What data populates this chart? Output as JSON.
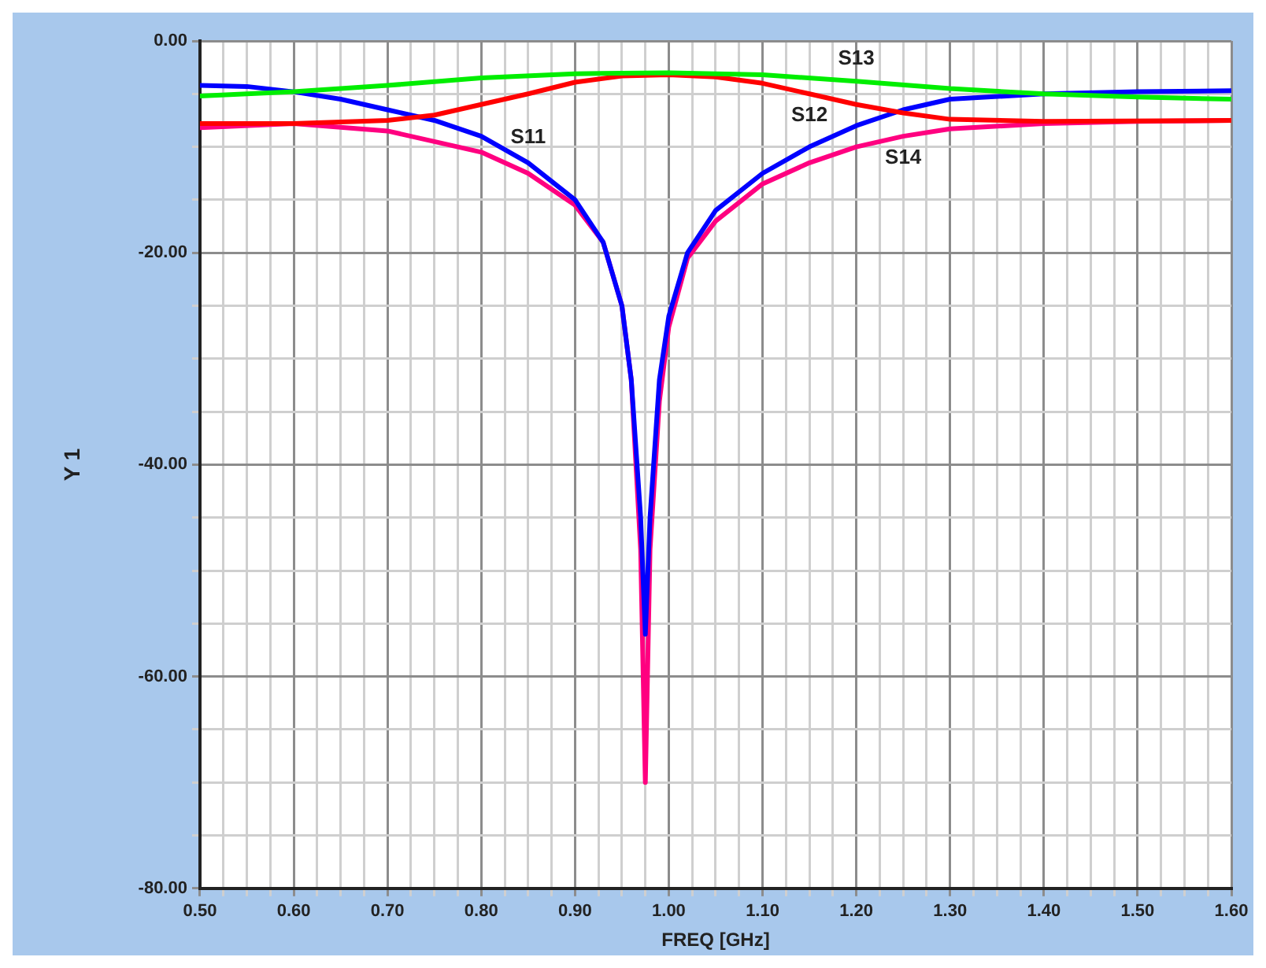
{
  "chart_data": {
    "type": "line",
    "xlabel": "FREQ [GHz]",
    "ylabel": "Y 1",
    "xlim": [
      0.5,
      1.6
    ],
    "ylim": [
      -80,
      0
    ],
    "xticks": [
      {
        "value": 0.5,
        "label": "0.50"
      },
      {
        "value": 0.525,
        "label": null
      },
      {
        "value": 0.55,
        "label": null
      },
      {
        "value": 0.575,
        "label": null
      },
      {
        "value": 0.6,
        "label": "0.60"
      },
      {
        "value": 0.625,
        "label": null
      },
      {
        "value": 0.65,
        "label": null
      },
      {
        "value": 0.675,
        "label": null
      },
      {
        "value": 0.7,
        "label": "0.70"
      },
      {
        "value": 0.725,
        "label": null
      },
      {
        "value": 0.75,
        "label": null
      },
      {
        "value": 0.775,
        "label": null
      },
      {
        "value": 0.8,
        "label": "0.80"
      },
      {
        "value": 0.825,
        "label": null
      },
      {
        "value": 0.85,
        "label": null
      },
      {
        "value": 0.875,
        "label": null
      },
      {
        "value": 0.9,
        "label": "0.90"
      },
      {
        "value": 0.925,
        "label": null
      },
      {
        "value": 0.95,
        "label": null
      },
      {
        "value": 0.975,
        "label": null
      },
      {
        "value": 1.0,
        "label": "1.00"
      },
      {
        "value": 1.025,
        "label": null
      },
      {
        "value": 1.05,
        "label": null
      },
      {
        "value": 1.075,
        "label": null
      },
      {
        "value": 1.1,
        "label": "1.10"
      },
      {
        "value": 1.125,
        "label": null
      },
      {
        "value": 1.15,
        "label": null
      },
      {
        "value": 1.175,
        "label": null
      },
      {
        "value": 1.2,
        "label": "1.20"
      },
      {
        "value": 1.225,
        "label": null
      },
      {
        "value": 1.25,
        "label": null
      },
      {
        "value": 1.275,
        "label": null
      },
      {
        "value": 1.3,
        "label": "1.30"
      },
      {
        "value": 1.325,
        "label": null
      },
      {
        "value": 1.35,
        "label": null
      },
      {
        "value": 1.375,
        "label": null
      },
      {
        "value": 1.4,
        "label": "1.40"
      },
      {
        "value": 1.425,
        "label": null
      },
      {
        "value": 1.45,
        "label": null
      },
      {
        "value": 1.475,
        "label": null
      },
      {
        "value": 1.5,
        "label": "1.50"
      },
      {
        "value": 1.525,
        "label": null
      },
      {
        "value": 1.55,
        "label": null
      },
      {
        "value": 1.575,
        "label": null
      },
      {
        "value": 1.6,
        "label": "1.60"
      }
    ],
    "yticks": [
      {
        "value": 0,
        "label": "0.00"
      },
      {
        "value": -5,
        "label": null
      },
      {
        "value": -10,
        "label": null
      },
      {
        "value": -15,
        "label": null
      },
      {
        "value": -20,
        "label": "-20.00"
      },
      {
        "value": -25,
        "label": null
      },
      {
        "value": -30,
        "label": null
      },
      {
        "value": -35,
        "label": null
      },
      {
        "value": -40,
        "label": "-40.00"
      },
      {
        "value": -45,
        "label": null
      },
      {
        "value": -50,
        "label": null
      },
      {
        "value": -55,
        "label": null
      },
      {
        "value": -60,
        "label": "-60.00"
      },
      {
        "value": -65,
        "label": null
      },
      {
        "value": -70,
        "label": null
      },
      {
        "value": -75,
        "label": null
      },
      {
        "value": -80,
        "label": "-80.00"
      }
    ],
    "grid": true,
    "legend": false,
    "marker": "none",
    "line_style": "solid",
    "series": [
      {
        "name": "S13",
        "color": "#00ee00",
        "x": [
          0.5,
          0.6,
          0.7,
          0.8,
          0.9,
          1.0,
          1.1,
          1.2,
          1.3,
          1.4,
          1.5,
          1.6
        ],
        "values": [
          -5.2,
          -4.8,
          -4.2,
          -3.5,
          -3.1,
          -3.0,
          -3.2,
          -3.8,
          -4.5,
          -5,
          -5.3,
          -5.5
        ]
      },
      {
        "name": "S12",
        "color": "#ff0000",
        "x": [
          0.5,
          0.6,
          0.7,
          0.75,
          0.8,
          0.85,
          0.9,
          0.95,
          1.0,
          1.05,
          1.1,
          1.15,
          1.2,
          1.25,
          1.3,
          1.4,
          1.6
        ],
        "values": [
          -7.8,
          -7.8,
          -7.5,
          -7,
          -6,
          -5,
          -3.9,
          -3.3,
          -3.2,
          -3.4,
          -4,
          -5,
          -6,
          -6.8,
          -7.4,
          -7.6,
          -7.5
        ]
      },
      {
        "name": "S11",
        "color": "#0000ff",
        "x": [
          0.5,
          0.55,
          0.6,
          0.65,
          0.7,
          0.75,
          0.8,
          0.85,
          0.9,
          0.93,
          0.95,
          0.96,
          0.97,
          0.975,
          0.98,
          0.99,
          1.0,
          1.02,
          1.05,
          1.1,
          1.15,
          1.2,
          1.25,
          1.3,
          1.4,
          1.5,
          1.6
        ],
        "values": [
          -4.2,
          -4.3,
          -4.8,
          -5.5,
          -6.5,
          -7.5,
          -9,
          -11.5,
          -15,
          -19,
          -25,
          -32,
          -45,
          -56,
          -45,
          -32,
          -26,
          -20,
          -16,
          -12.5,
          -10,
          -8,
          -6.5,
          -5.5,
          -5,
          -4.8,
          -4.7
        ]
      },
      {
        "name": "S14",
        "color": "#ff0080",
        "x": [
          0.5,
          0.6,
          0.7,
          0.75,
          0.8,
          0.85,
          0.9,
          0.93,
          0.95,
          0.96,
          0.97,
          0.975,
          0.98,
          0.99,
          1.0,
          1.02,
          1.05,
          1.1,
          1.15,
          1.2,
          1.25,
          1.3,
          1.4,
          1.5,
          1.6
        ],
        "values": [
          -8.2,
          -7.8,
          -8.5,
          -9.5,
          -10.5,
          -12.5,
          -15.5,
          -19,
          -25,
          -32,
          -48,
          -70,
          -48,
          -34,
          -27,
          -20.5,
          -17,
          -13.5,
          -11.5,
          -10,
          -9,
          -8.3,
          -7.8,
          -7.6,
          -7.5
        ]
      }
    ]
  }
}
